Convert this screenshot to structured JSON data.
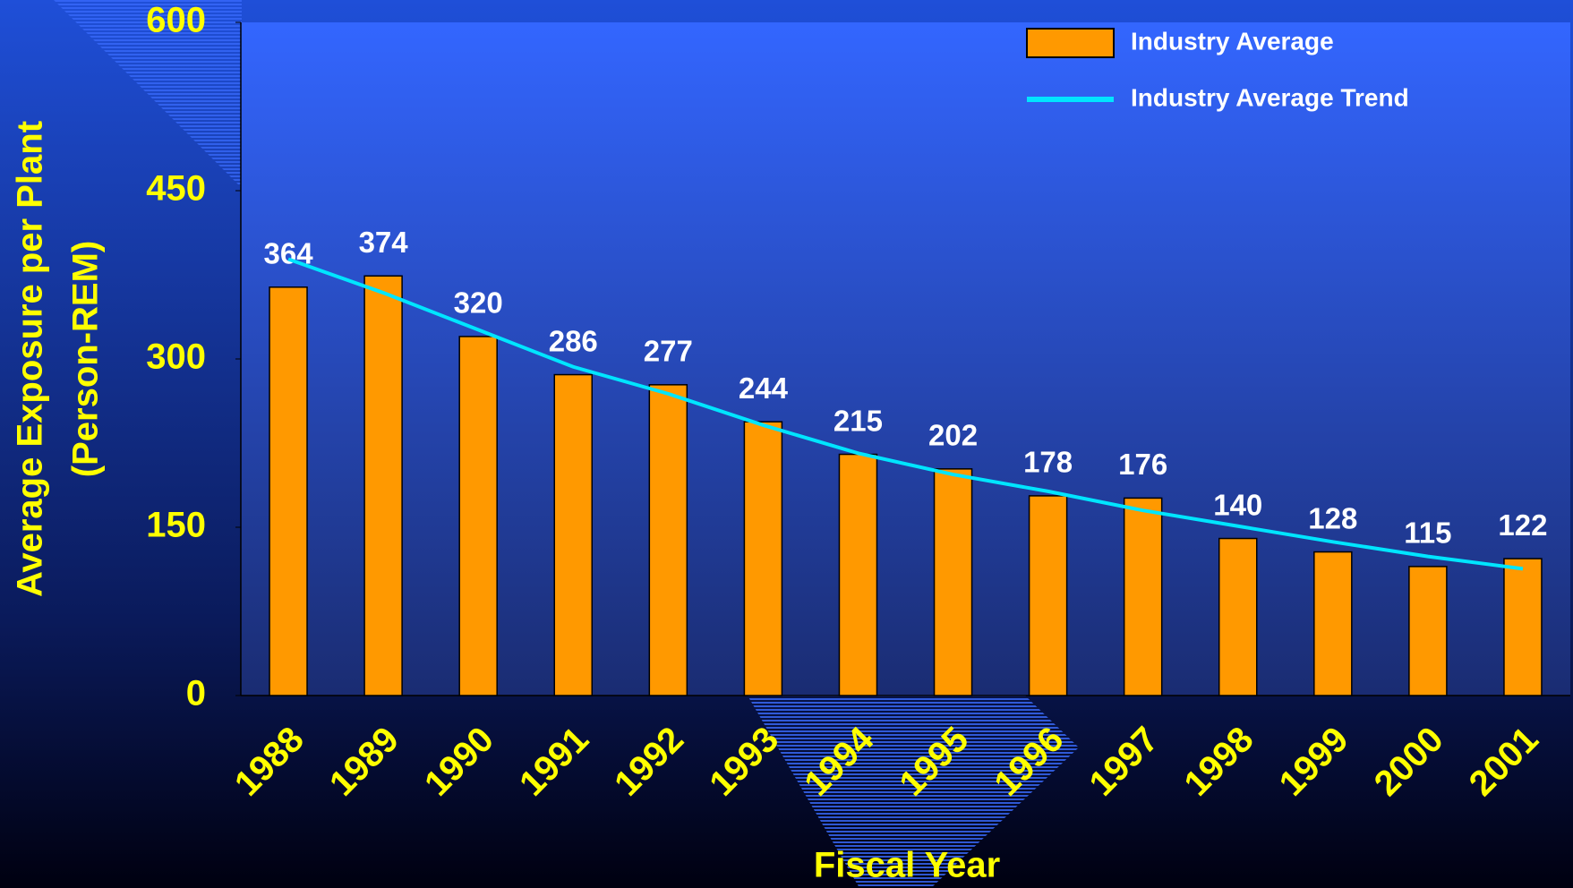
{
  "chart_data": {
    "type": "bar",
    "xlabel": "Fiscal Year",
    "ylabel": [
      "Average Exposure per Plant",
      "(Person-REM)"
    ],
    "categories": [
      "1988",
      "1989",
      "1990",
      "1991",
      "1992",
      "1993",
      "1994",
      "1995",
      "1996",
      "1997",
      "1998",
      "1999",
      "2000",
      "2001"
    ],
    "series": [
      {
        "name": "Industry Average",
        "type": "bar",
        "color": "#ff9900",
        "values": [
          364,
          374,
          320,
          286,
          277,
          244,
          215,
          202,
          178,
          176,
          140,
          128,
          115,
          122
        ]
      },
      {
        "name": "Industry Average Trend",
        "type": "line",
        "color": "#00e5ff",
        "values": [
          389,
          359,
          326,
          293,
          269,
          241,
          216,
          197,
          182,
          165,
          151,
          137,
          124,
          113
        ]
      }
    ],
    "ylim": [
      0,
      600
    ],
    "yticks": [
      0,
      150,
      300,
      450,
      600
    ],
    "legend": "upper right"
  }
}
